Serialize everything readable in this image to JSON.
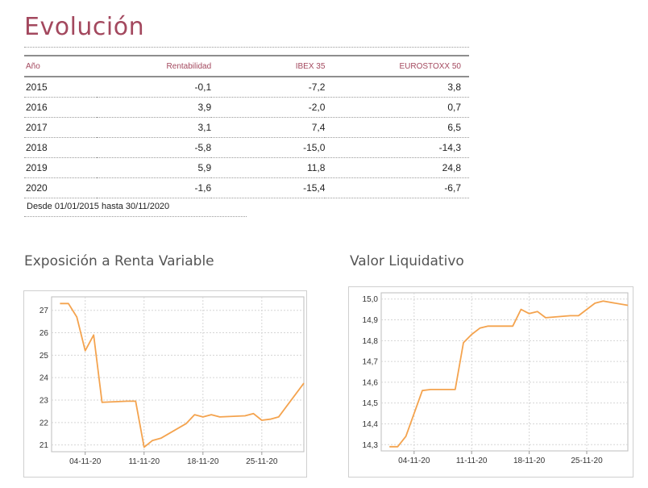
{
  "title": "Evolución",
  "table": {
    "headers": [
      "Año",
      "Rentabilidad",
      "IBEX 35",
      "EUROSTOXX 50"
    ],
    "rows": [
      [
        "2015",
        "-0,1",
        "-7,2",
        "3,8"
      ],
      [
        "2016",
        "3,9",
        "-2,0",
        "0,7"
      ],
      [
        "2017",
        "3,1",
        "7,4",
        "6,5"
      ],
      [
        "2018",
        "-5,8",
        "-15,0",
        "-14,3"
      ],
      [
        "2019",
        "5,9",
        "11,8",
        "24,8"
      ],
      [
        "2020",
        "-1,6",
        "-15,4",
        "-6,7"
      ]
    ],
    "footnote": "Desde 01/01/2015 hasta 30/11/2020"
  },
  "colors": {
    "accent": "#a3485e",
    "line": "#f4a34e",
    "grid": "#d5d5d5"
  },
  "chart_data": [
    {
      "type": "line",
      "title": "Exposición a Renta Variable",
      "xlabel": "",
      "ylabel": "",
      "ylim": [
        20.7,
        27.6
      ],
      "xlim": [
        "2020-10-31",
        "2020-11-30"
      ],
      "yticks": [
        21,
        22,
        23,
        24,
        25,
        26,
        27
      ],
      "ytick_labels": [
        "21",
        "22",
        "23",
        "24",
        "25",
        "26",
        "27"
      ],
      "xticks": [
        "2020-11-04",
        "2020-11-11",
        "2020-11-18",
        "2020-11-25"
      ],
      "xtick_labels": [
        "04-11-20",
        "11-11-20",
        "18-11-20",
        "25-11-20"
      ],
      "grid": true,
      "series": [
        {
          "x": [
            "2020-11-01",
            "2020-11-02",
            "2020-11-03",
            "2020-11-04",
            "2020-11-05",
            "2020-11-06",
            "2020-11-09",
            "2020-11-10",
            "2020-11-11",
            "2020-11-12",
            "2020-11-13",
            "2020-11-16",
            "2020-11-17",
            "2020-11-18",
            "2020-11-19",
            "2020-11-20",
            "2020-11-23",
            "2020-11-24",
            "2020-11-25",
            "2020-11-26",
            "2020-11-27",
            "2020-11-30"
          ],
          "y": [
            27.3,
            27.3,
            26.7,
            25.2,
            25.9,
            22.9,
            22.95,
            22.95,
            20.9,
            21.2,
            21.3,
            21.95,
            22.35,
            22.25,
            22.35,
            22.25,
            22.3,
            22.4,
            22.1,
            22.15,
            22.25,
            23.75
          ]
        }
      ]
    },
    {
      "type": "line",
      "title": "Valor Liquidativo",
      "xlabel": "",
      "ylabel": "",
      "ylim": [
        14.27,
        15.03
      ],
      "xlim": [
        "2020-10-31",
        "2020-11-30"
      ],
      "yticks": [
        14.3,
        14.4,
        14.5,
        14.6,
        14.7,
        14.8,
        14.9,
        15.0
      ],
      "ytick_labels": [
        "14,3",
        "14,4",
        "14,5",
        "14,6",
        "14,7",
        "14,8",
        "14,9",
        "15,0"
      ],
      "xticks": [
        "2020-11-04",
        "2020-11-11",
        "2020-11-18",
        "2020-11-25"
      ],
      "xtick_labels": [
        "04-11-20",
        "11-11-20",
        "18-11-20",
        "25-11-20"
      ],
      "grid": true,
      "series": [
        {
          "x": [
            "2020-11-01",
            "2020-11-02",
            "2020-11-03",
            "2020-11-04",
            "2020-11-05",
            "2020-11-06",
            "2020-11-09",
            "2020-11-10",
            "2020-11-11",
            "2020-11-12",
            "2020-11-13",
            "2020-11-16",
            "2020-11-17",
            "2020-11-18",
            "2020-11-19",
            "2020-11-20",
            "2020-11-23",
            "2020-11-24",
            "2020-11-25",
            "2020-11-26",
            "2020-11-27",
            "2020-11-30"
          ],
          "y": [
            14.29,
            14.29,
            14.34,
            14.45,
            14.56,
            14.565,
            14.565,
            14.79,
            14.83,
            14.86,
            14.87,
            14.87,
            14.95,
            14.93,
            14.94,
            14.91,
            14.92,
            14.92,
            14.95,
            14.98,
            14.99,
            14.97
          ]
        }
      ]
    }
  ]
}
